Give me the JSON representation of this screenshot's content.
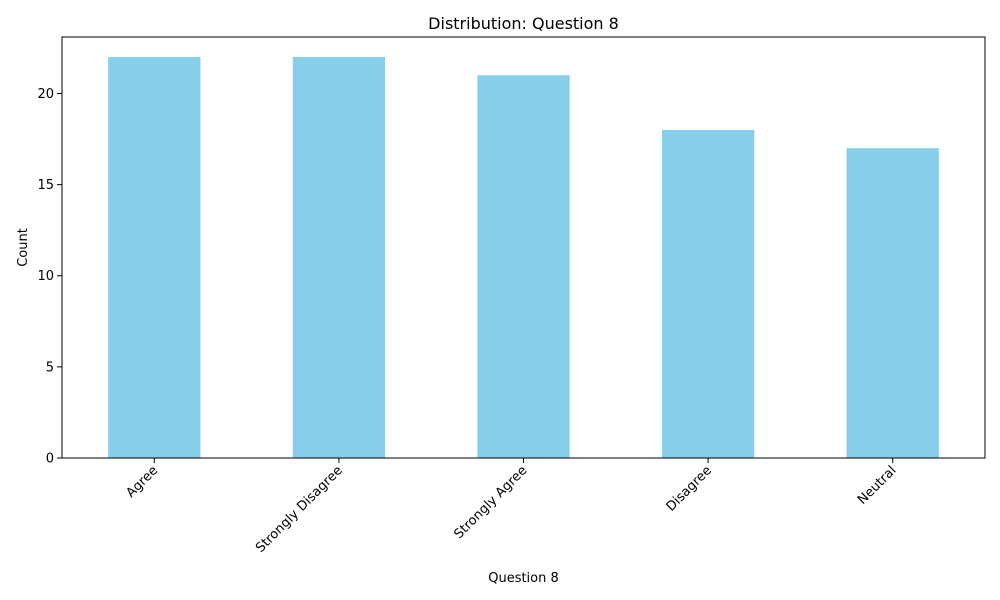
{
  "chart_data": {
    "type": "bar",
    "title": "Distribution: Question 8",
    "xlabel": "Question 8",
    "ylabel": "Count",
    "categories": [
      "Agree",
      "Strongly Disagree",
      "Strongly Agree",
      "Disagree",
      "Neutral"
    ],
    "values": [
      22,
      22,
      21,
      18,
      17
    ],
    "ylim": [
      0,
      23.1
    ],
    "yticks": [
      0,
      5,
      10,
      15,
      20
    ],
    "grid": false,
    "bar_color": "#87ceeb"
  }
}
